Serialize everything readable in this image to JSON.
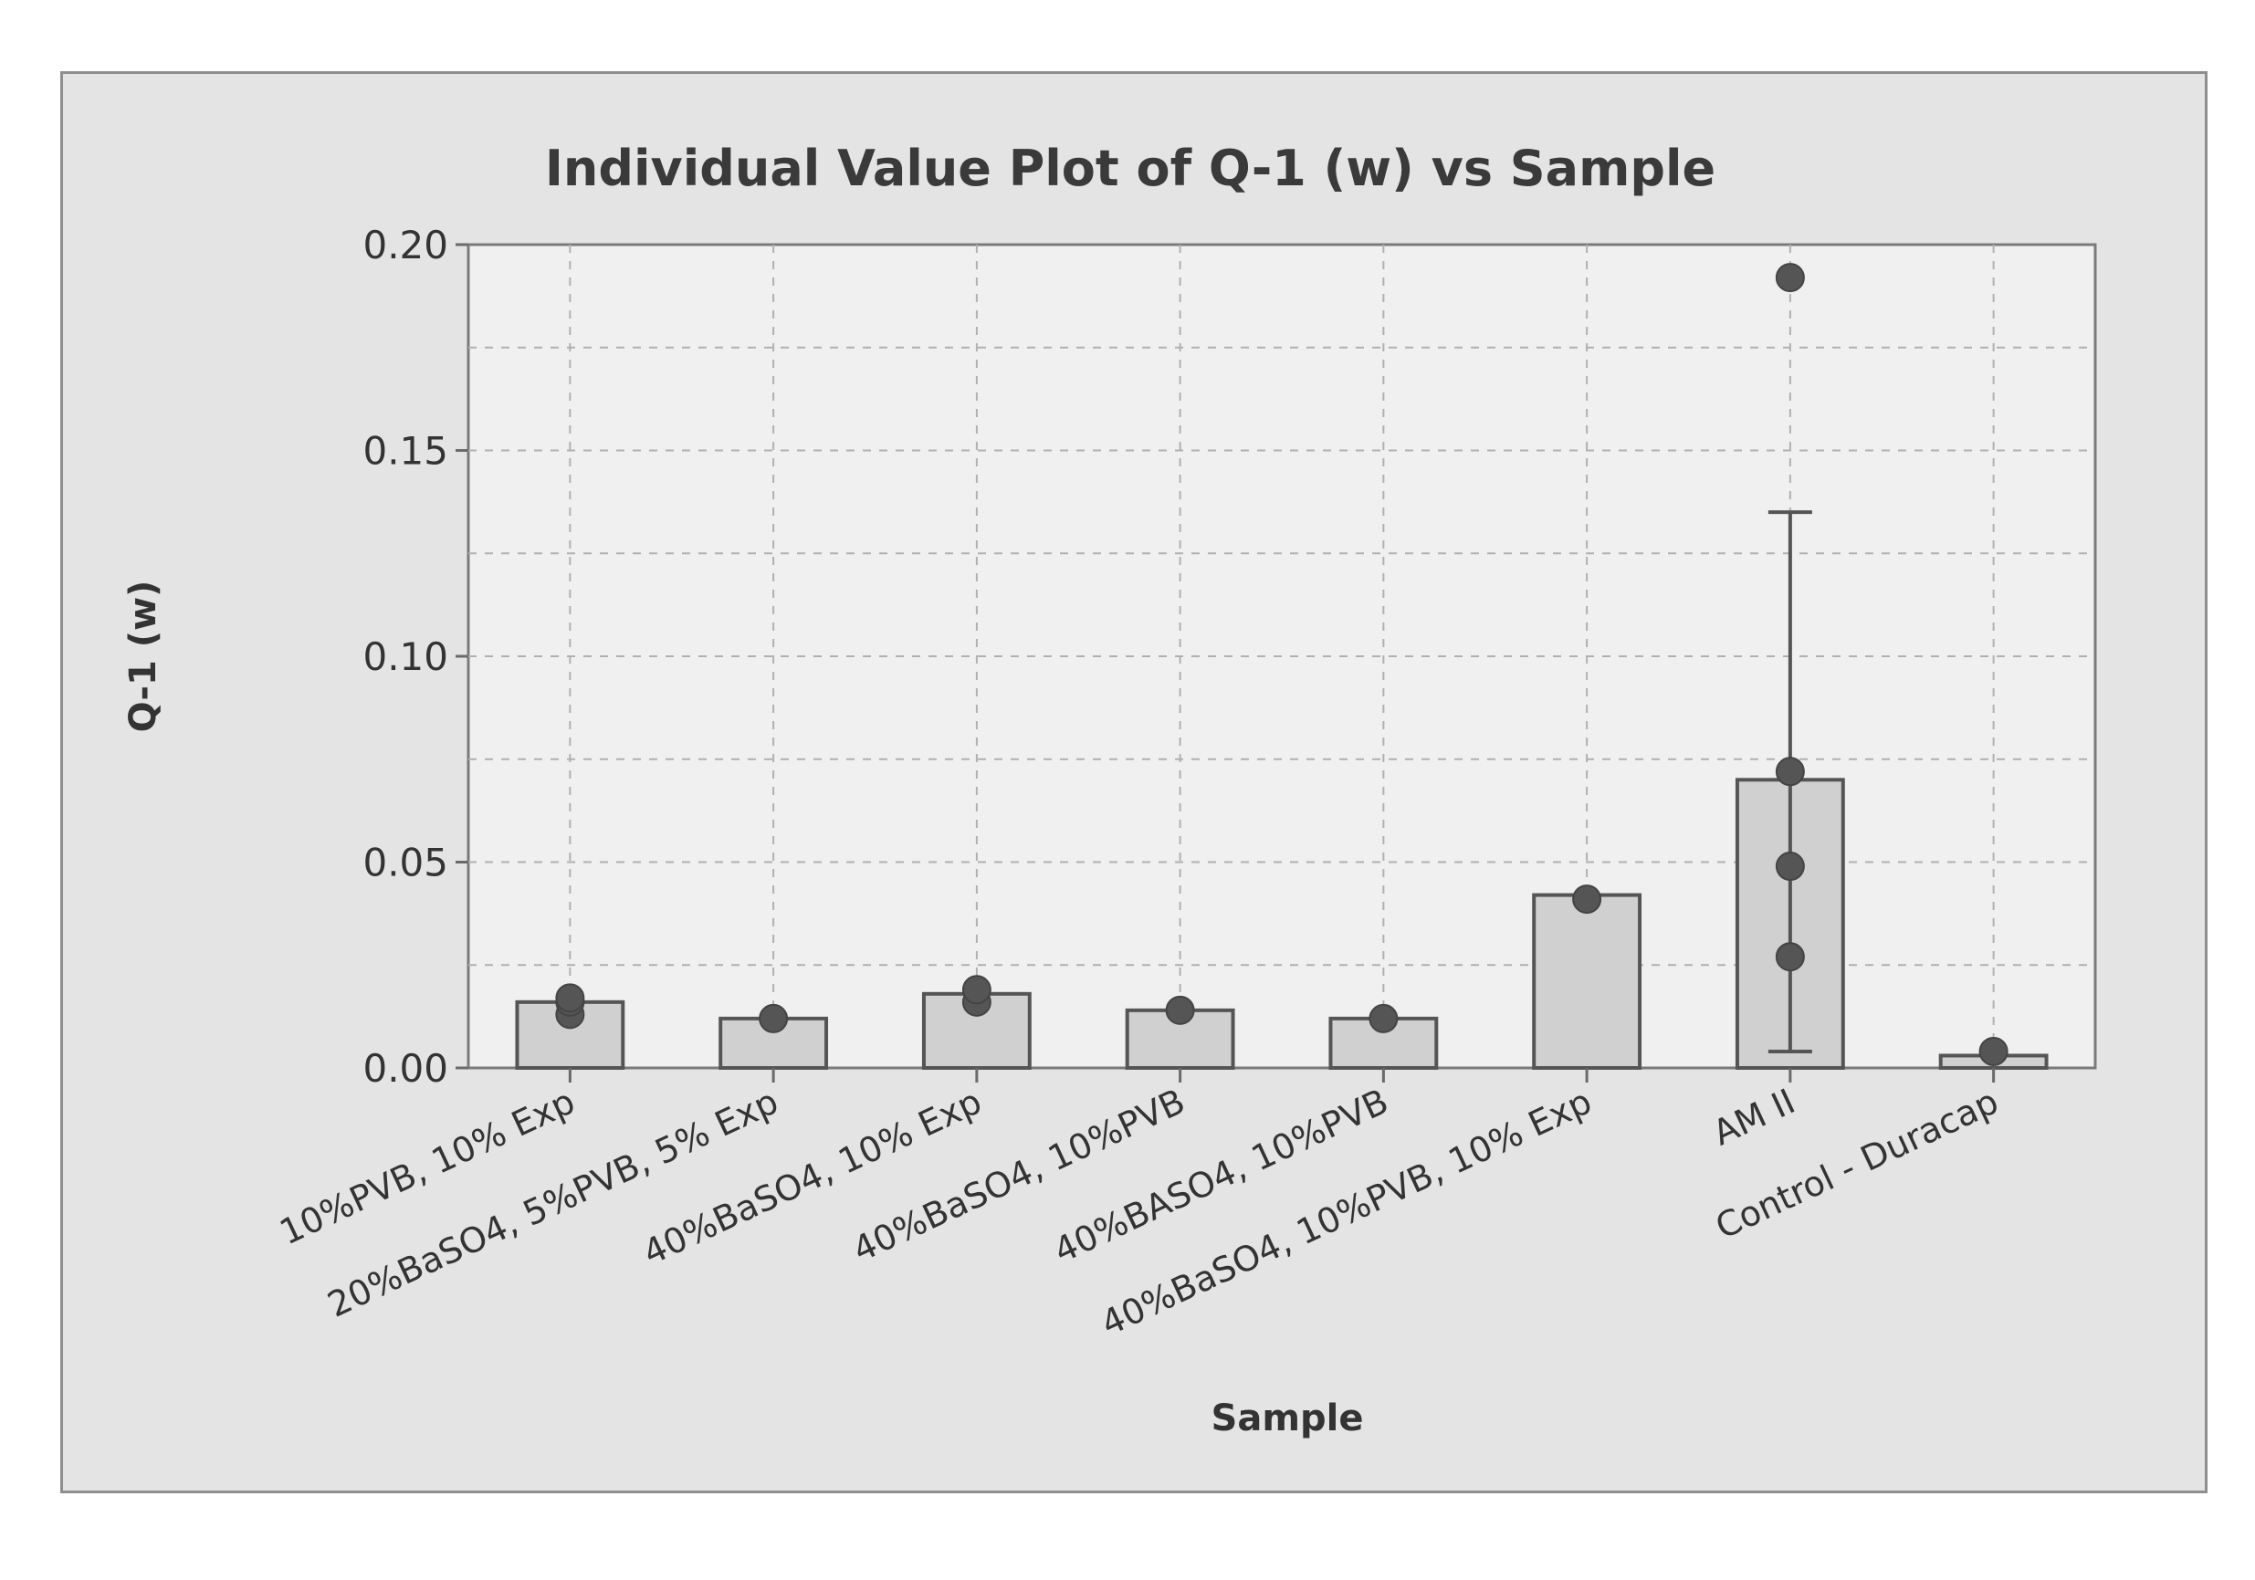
{
  "chart_data": {
    "type": "bar",
    "title": "Individual Value Plot of Q-1 (w) vs Sample",
    "xlabel": "Sample",
    "ylabel": "Q-1 (w)",
    "ylim": [
      0,
      0.2
    ],
    "yticks": [
      "0.00",
      "0.05",
      "0.10",
      "0.15",
      "0.20"
    ],
    "grid": true,
    "categories": [
      "10%PVB, 10% Exp",
      "20%BaSO4, 5%PVB, 5% Exp",
      "40%BaSO4, 10% Exp",
      "40%BaSO4, 10%PVB",
      "40%BASO4, 10%PVB",
      "40%BaSO4, 10%PVB, 10% Exp",
      "AM II",
      "Control - Duracap"
    ],
    "values": [
      0.016,
      0.012,
      0.018,
      0.014,
      0.012,
      0.042,
      0.07,
      0.003
    ],
    "individual_values": [
      [
        0.013,
        0.016,
        0.017
      ],
      [
        0.012
      ],
      [
        0.016,
        0.019
      ],
      [
        0.014
      ],
      [
        0.012
      ],
      [
        0.041
      ],
      [
        0.027,
        0.049,
        0.072,
        0.192
      ],
      [
        0.004
      ]
    ],
    "error_bars": [
      null,
      null,
      null,
      null,
      null,
      null,
      [
        0.004,
        0.135
      ],
      null
    ],
    "colors": {
      "background": "#e4e4e4",
      "bar_fill": "#d0d0d0",
      "bar_stroke": "#555555",
      "point": "#555555",
      "grid": "#b0b0b0",
      "axis": "#6a6a6a",
      "text": "#333333"
    }
  }
}
